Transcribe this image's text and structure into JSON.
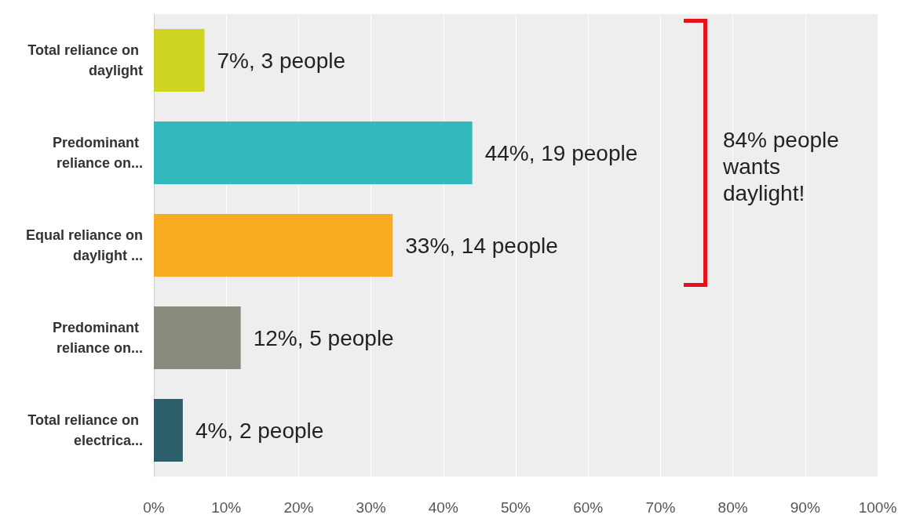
{
  "chart_data": {
    "type": "bar",
    "orientation": "horizontal",
    "categories": [
      "Total reliance on daylight",
      "Predominant reliance on...",
      "Equal reliance on daylight ...",
      "Predominant reliance on...",
      "Total reliance on electrica..."
    ],
    "values": [
      7,
      44,
      33,
      12,
      4
    ],
    "colors": [
      "#cfd423",
      "#33b9bd",
      "#f6ab20",
      "#8a8a7c",
      "#2d5f6b"
    ],
    "value_labels": [
      "7%, 3 people",
      "44%, 19 people",
      "33%, 14 people",
      "12%, 5 people",
      "4%, 2 people"
    ],
    "xlim": [
      0,
      100
    ],
    "xticks": [
      {
        "value": 0,
        "label": "0%"
      },
      {
        "value": 10,
        "label": "10%"
      },
      {
        "value": 20,
        "label": "20%"
      },
      {
        "value": 30,
        "label": "30%"
      },
      {
        "value": 40,
        "label": "40%"
      },
      {
        "value": 50,
        "label": "50%"
      },
      {
        "value": 60,
        "label": "60%"
      },
      {
        "value": 70,
        "label": "70%"
      },
      {
        "value": 80,
        "label": "80%"
      },
      {
        "value": 90,
        "label": "90%"
      },
      {
        "value": 100,
        "label": "100%"
      }
    ],
    "grid": "x",
    "annotations": [
      "84% people wants daylight!"
    ]
  }
}
